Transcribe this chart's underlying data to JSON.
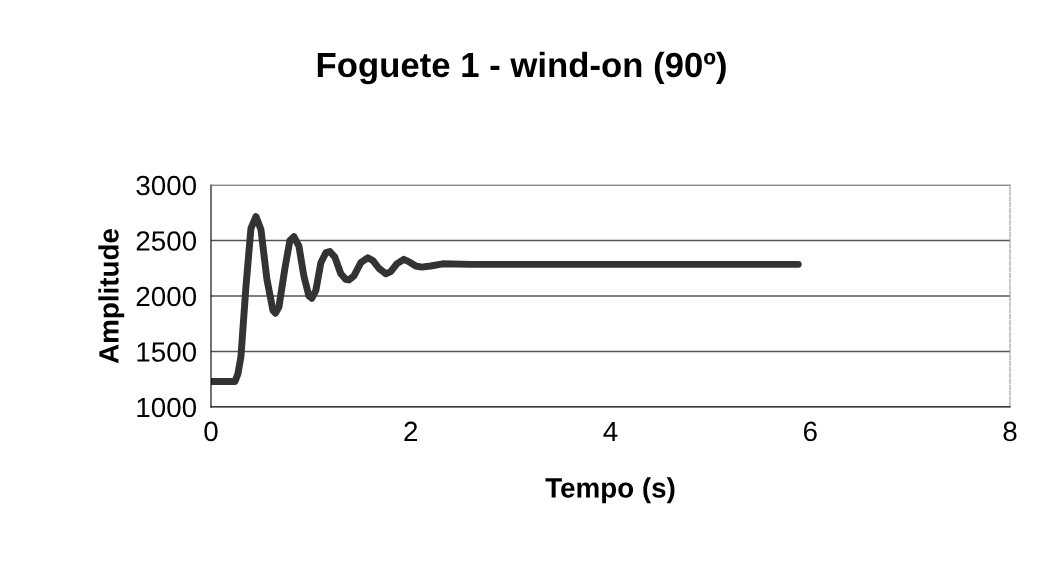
{
  "chart_data": {
    "type": "line",
    "title": "Foguete 1 - wind-on (90º)",
    "xlabel": "Tempo (s)",
    "ylabel": "Amplitude",
    "series": [
      {
        "color": "#333333",
        "x": [
          0,
          0.24,
          0.27,
          0.3,
          0.35,
          0.4,
          0.45,
          0.5,
          0.56,
          0.62,
          0.645,
          0.68,
          0.74,
          0.79,
          0.83,
          0.88,
          0.93,
          0.98,
          1.01,
          1.05,
          1.1,
          1.15,
          1.19,
          1.24,
          1.3,
          1.35,
          1.38,
          1.43,
          1.5,
          1.57,
          1.62,
          1.68,
          1.75,
          1.8,
          1.86,
          1.93,
          1.98,
          2.05,
          2.11,
          2.2,
          2.32,
          2.6,
          3.0,
          4.0,
          5.0,
          5.88
        ],
        "values": [
          1230,
          1230,
          1300,
          1455,
          2085,
          2610,
          2715,
          2600,
          2150,
          1870,
          1845,
          1900,
          2250,
          2500,
          2535,
          2450,
          2180,
          2000,
          1980,
          2050,
          2300,
          2390,
          2400,
          2350,
          2200,
          2150,
          2145,
          2180,
          2300,
          2345,
          2320,
          2250,
          2200,
          2220,
          2290,
          2330,
          2310,
          2270,
          2260,
          2270,
          2290,
          2285,
          2285,
          2285,
          2285,
          2285
        ]
      }
    ],
    "xlim": [
      0,
      8
    ],
    "xticks": [
      0,
      2,
      4,
      6,
      8
    ],
    "ylim": [
      1000,
      3000
    ],
    "yticks": [
      1000,
      1500,
      2000,
      2500,
      3000
    ],
    "grid": "y",
    "legend": false,
    "marker": "none",
    "line_style": "solid"
  }
}
